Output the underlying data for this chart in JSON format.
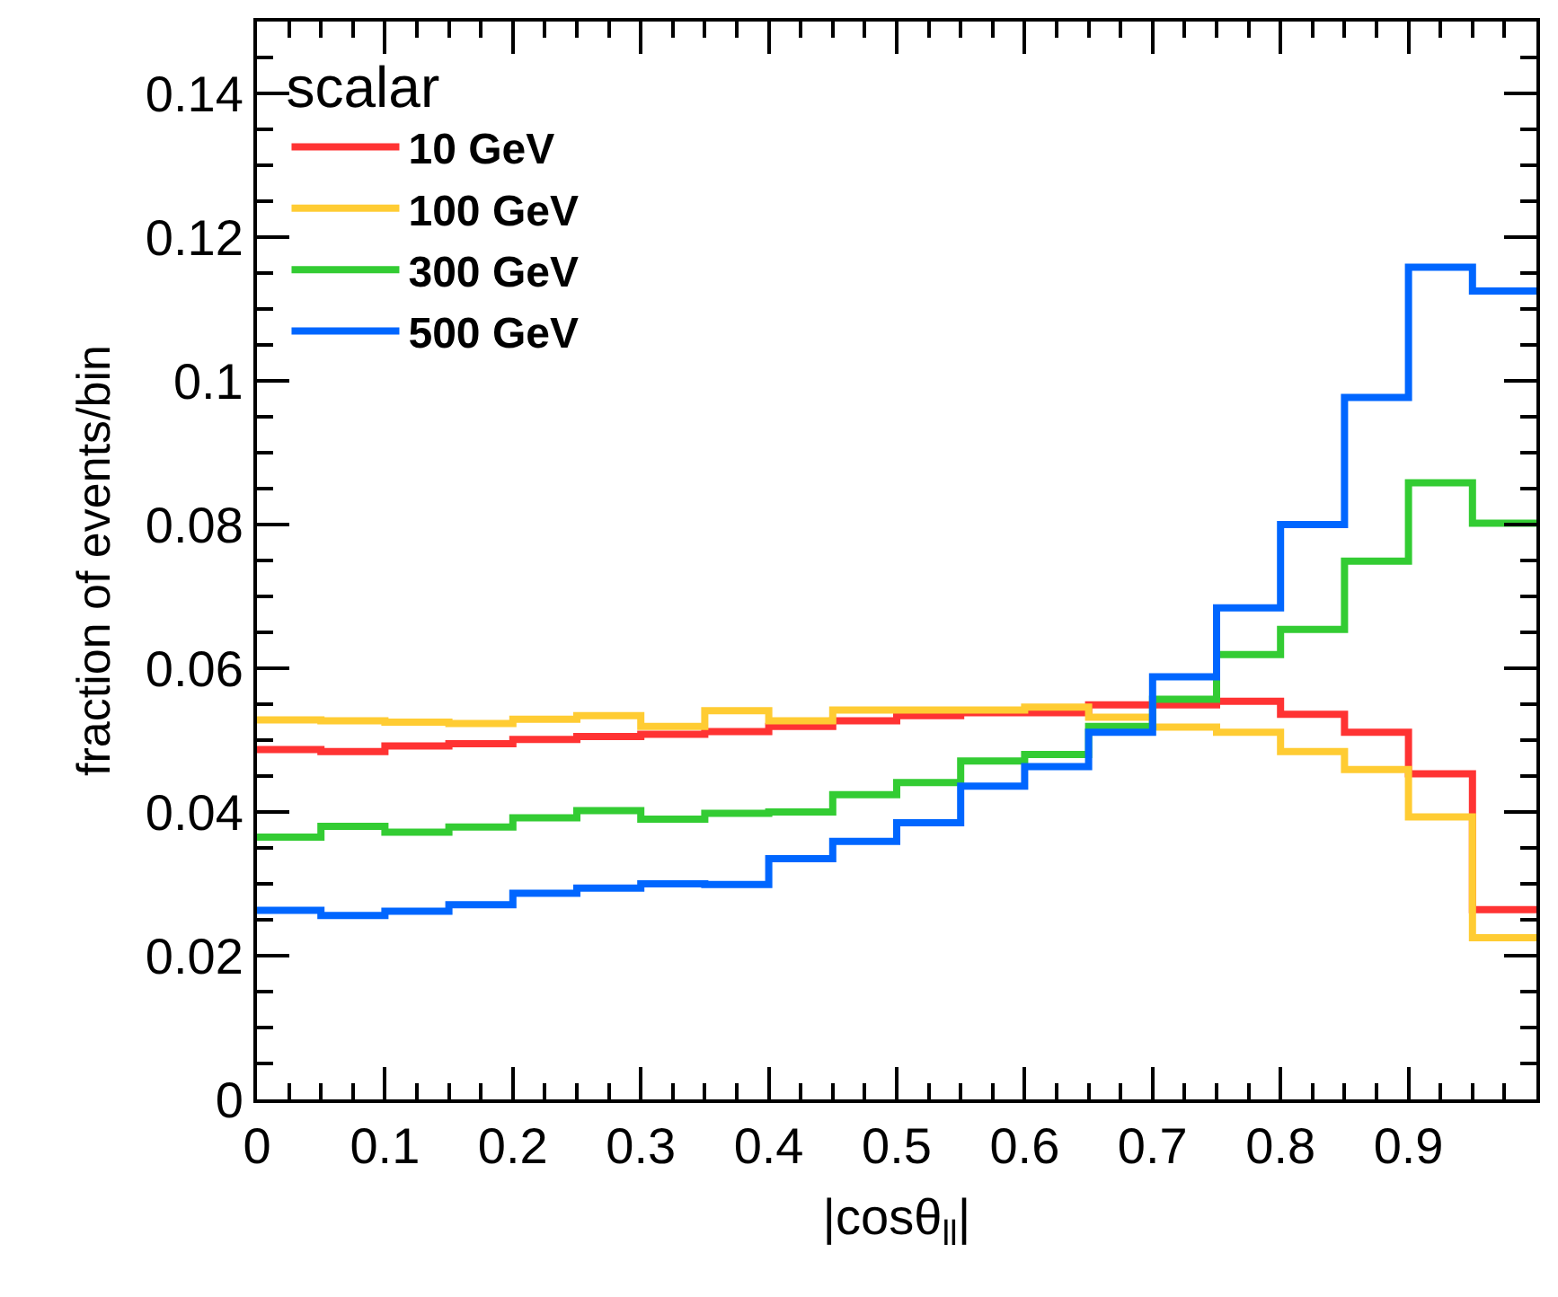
{
  "chart_data": {
    "type": "histogram",
    "xlabel": "|cosθ$_{ll}$|",
    "ylabel": "fraction of events/bin",
    "legend_title": "scalar",
    "bins": [
      0,
      0.05,
      0.1,
      0.15,
      0.2,
      0.25,
      0.3,
      0.35,
      0.4,
      0.45,
      0.5,
      0.55,
      0.6,
      0.65,
      0.7,
      0.75,
      0.8,
      0.85,
      0.9,
      0.95,
      1.0
    ],
    "series": [
      {
        "name": "10 GeV",
        "color": "#ff3333",
        "values": [
          0.0487,
          0.0484,
          0.0492,
          0.0495,
          0.0501,
          0.0505,
          0.0508,
          0.0512,
          0.0519,
          0.0527,
          0.0534,
          0.0538,
          0.0538,
          0.0549,
          0.0549,
          0.0554,
          0.0536,
          0.0511,
          0.0453,
          0.0264
        ]
      },
      {
        "name": "100 GeV",
        "color": "#ffcc33",
        "values": [
          0.0528,
          0.0527,
          0.0525,
          0.0523,
          0.0529,
          0.0534,
          0.0519,
          0.0541,
          0.0527,
          0.0542,
          0.0542,
          0.0542,
          0.0546,
          0.0532,
          0.0518,
          0.0511,
          0.0484,
          0.0459,
          0.0393,
          0.0225
        ]
      },
      {
        "name": "300 GeV",
        "color": "#33cc33",
        "values": [
          0.0365,
          0.038,
          0.0372,
          0.0379,
          0.0392,
          0.0402,
          0.039,
          0.0398,
          0.04,
          0.0424,
          0.0441,
          0.0471,
          0.048,
          0.0519,
          0.0557,
          0.0619,
          0.0654,
          0.0749,
          0.0858,
          0.0802
        ]
      },
      {
        "name": "500 GeV",
        "color": "#0066ff",
        "values": [
          0.0263,
          0.0256,
          0.0262,
          0.0271,
          0.0287,
          0.0294,
          0.03,
          0.0299,
          0.0335,
          0.0359,
          0.0385,
          0.0436,
          0.0463,
          0.0511,
          0.0588,
          0.0684,
          0.08,
          0.0977,
          0.1158,
          0.1125
        ]
      }
    ],
    "xlim": [
      0,
      1
    ],
    "ylim": [
      0,
      0.15
    ],
    "xticks": [
      0,
      0.1,
      0.2,
      0.3,
      0.4,
      0.5,
      0.6,
      0.7,
      0.8,
      0.9
    ],
    "yticks": [
      0,
      0.02,
      0.04,
      0.06,
      0.08,
      0.1,
      0.12,
      0.14
    ],
    "legend": "top left"
  }
}
